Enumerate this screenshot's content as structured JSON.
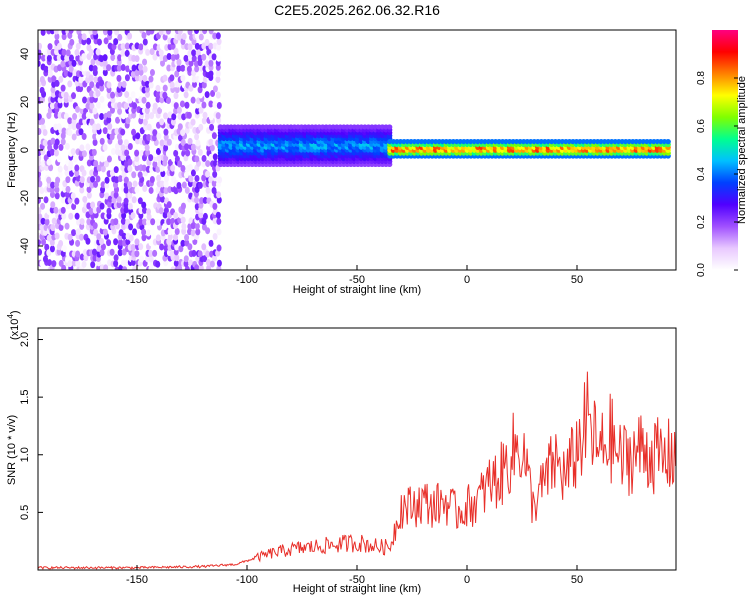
{
  "title": "C2E5.2025.262.06.32.R16",
  "chart_data": [
    {
      "type": "heatmap",
      "xlabel": "Height of straight line (km)",
      "ylabel": "Frequency (Hz)",
      "xlim": [
        -195,
        95
      ],
      "ylim": [
        -50,
        50
      ],
      "xticks": [
        -150,
        -100,
        -50,
        0,
        50
      ],
      "yticks": [
        -40,
        -20,
        0,
        20,
        40
      ],
      "colorbar": {
        "label": "Normalized spectral amplitude",
        "range": [
          0,
          1
        ],
        "ticks": [
          "0.0",
          "0.2",
          "0.4",
          "0.6",
          "0.8"
        ],
        "colormap": [
          "#ffffff",
          "#e8c8ff",
          "#a050ff",
          "#5000ff",
          "#0040ff",
          "#00c0ff",
          "#00ff90",
          "#80ff00",
          "#ffff00",
          "#ff8000",
          "#ff0000",
          "#ff0080"
        ]
      },
      "regions": [
        {
          "x_range": [
            -195,
            -112
          ],
          "description": "noise",
          "freq_range": [
            -50,
            50
          ],
          "amplitude": [
            0.0,
            0.25
          ]
        },
        {
          "x_range": [
            -112,
            -35
          ],
          "description": "broadband signal",
          "center_freq": 2,
          "half_width": 8,
          "amplitude": [
            0.2,
            0.5
          ]
        },
        {
          "x_range": [
            -35,
            92
          ],
          "description": "narrowband carrier",
          "center_freq": 0.5,
          "half_width": 3,
          "amplitude": [
            0.4,
            1.0
          ]
        }
      ]
    },
    {
      "type": "line",
      "xlabel": "Height of straight line (km)",
      "ylabel": "SNR (10 * v/v)",
      "y_multiplier": "(x10",
      "y_multiplier_exp": "4",
      "xlim": [
        -195,
        95
      ],
      "ylim": [
        0,
        2.1
      ],
      "xticks": [
        -150,
        -100,
        -50,
        0,
        50
      ],
      "yticks": [
        "0.5",
        "1.0",
        "1.5",
        "2.0"
      ],
      "color": "#e8302a",
      "x": [
        -195,
        -150,
        -120,
        -105,
        -100,
        -90,
        -80,
        -70,
        -60,
        -50,
        -40,
        -35,
        -30,
        -25,
        -20,
        -15,
        -10,
        -5,
        0,
        5,
        10,
        15,
        20,
        25,
        30,
        35,
        40,
        45,
        50,
        55,
        60,
        65,
        70,
        75,
        80,
        85,
        90,
        95
      ],
      "y": [
        0.02,
        0.02,
        0.03,
        0.05,
        0.08,
        0.14,
        0.18,
        0.2,
        0.22,
        0.24,
        0.2,
        0.2,
        0.55,
        0.55,
        0.6,
        0.55,
        0.6,
        0.5,
        0.55,
        0.6,
        0.75,
        0.8,
        1.0,
        1.1,
        0.55,
        0.75,
        0.95,
        0.8,
        1.05,
        1.3,
        1.0,
        1.15,
        0.95,
        1.0,
        1.05,
        1.0,
        0.95,
        1.05
      ]
    }
  ]
}
